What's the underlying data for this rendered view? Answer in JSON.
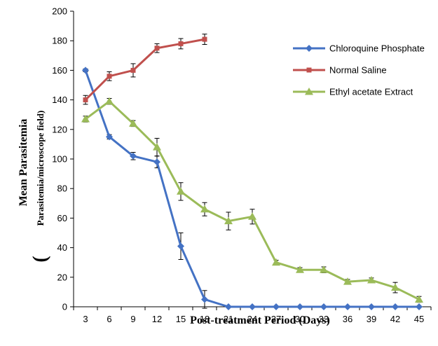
{
  "chart_data": {
    "type": "line",
    "title": "",
    "xlabel": "Post-treatment Period (Days)",
    "ylabel_line1": "Mean Parasitemia",
    "ylabel_line2": "Parasitemia/microscope field)",
    "ylabel_paren": "(",
    "x": [
      3,
      6,
      9,
      12,
      15,
      18,
      21,
      24,
      27,
      30,
      33,
      36,
      39,
      42,
      45
    ],
    "xlim": [
      1.5,
      46.5
    ],
    "ylim": [
      0,
      200
    ],
    "yticks": [
      0,
      20,
      40,
      60,
      80,
      100,
      120,
      140,
      160,
      180,
      200
    ],
    "grid": false,
    "legend_position": "top-right",
    "series": [
      {
        "name": "Chloroquine Phosphate",
        "color": "#4472C4",
        "marker": "diamond",
        "x": [
          3,
          6,
          9,
          12,
          15,
          18,
          21,
          24,
          27,
          30,
          33,
          36,
          39,
          42,
          45
        ],
        "values": [
          160,
          115,
          102,
          98,
          41,
          5,
          0,
          0,
          0,
          0,
          0,
          0,
          0,
          0,
          0
        ],
        "errors": [
          1,
          1.5,
          2.5,
          4,
          9,
          6,
          0,
          0,
          0,
          0,
          0,
          0,
          0,
          0,
          0
        ]
      },
      {
        "name": "Normal Saline",
        "color": "#C0504D",
        "marker": "square",
        "x": [
          3,
          6,
          9,
          12,
          15,
          18
        ],
        "values": [
          140,
          156,
          160,
          175,
          178,
          181
        ],
        "errors": [
          3,
          3,
          4.5,
          3,
          3.5,
          3.5
        ]
      },
      {
        "name": "Ethyl acetate Extract",
        "color": "#9BBB59",
        "marker": "triangle",
        "x": [
          3,
          6,
          9,
          12,
          15,
          18,
          21,
          24,
          27,
          30,
          33,
          36,
          39,
          42,
          45
        ],
        "values": [
          127,
          139,
          124,
          108,
          78,
          66,
          58,
          61,
          30,
          25,
          25,
          17,
          18,
          13,
          5
        ],
        "errors": [
          2,
          2,
          2,
          6,
          6,
          4.5,
          6,
          5,
          1.5,
          1.5,
          2,
          1.5,
          1.5,
          3.5,
          2
        ]
      }
    ]
  }
}
